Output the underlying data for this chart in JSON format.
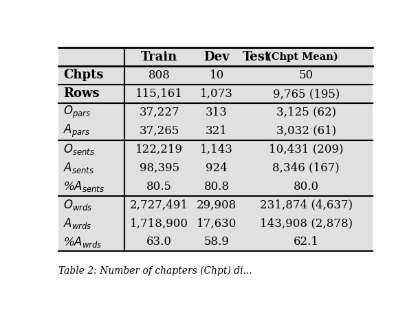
{
  "col_headers": [
    "",
    "Train",
    "Dev",
    "Test (Chpt Mean)"
  ],
  "groups": [
    {
      "rows": [
        [
          "Chpts",
          "808",
          "10",
          "50"
        ]
      ],
      "label_style": "bold"
    },
    {
      "rows": [
        [
          "Rows",
          "115,161",
          "1,073",
          "9,765 (195)"
        ]
      ],
      "label_style": "bold"
    },
    {
      "rows": [
        [
          "$O_{pars}$",
          "37,227",
          "313",
          "3,125 (62)"
        ],
        [
          "$A_{pars}$",
          "37,265",
          "321",
          "3,032 (61)"
        ]
      ],
      "label_style": "italic"
    },
    {
      "rows": [
        [
          "$O_{sents}$",
          "122,219",
          "1,143",
          "10,431 (209)"
        ],
        [
          "$A_{sents}$",
          "98,395",
          "924",
          "8,346 (167)"
        ],
        [
          "%$A_{sents}$",
          "80.5",
          "80.8",
          "80.0"
        ]
      ],
      "label_style": "italic"
    },
    {
      "rows": [
        [
          "$O_{wrds}$",
          "2,727,491",
          "29,908",
          "231,874 (4,637)"
        ],
        [
          "$A_{wrds}$",
          "1,718,900",
          "17,630",
          "143,908 (2,878)"
        ],
        [
          "%$A_{wrds}$",
          "63.0",
          "58.9",
          "62.1"
        ]
      ],
      "label_style": "italic"
    }
  ],
  "bg_color": "#e0e0e0",
  "caption": "Table 2: Number of chapters (Chpt) di...",
  "fig_width": 6.08,
  "fig_height": 4.58,
  "dpi": 100
}
